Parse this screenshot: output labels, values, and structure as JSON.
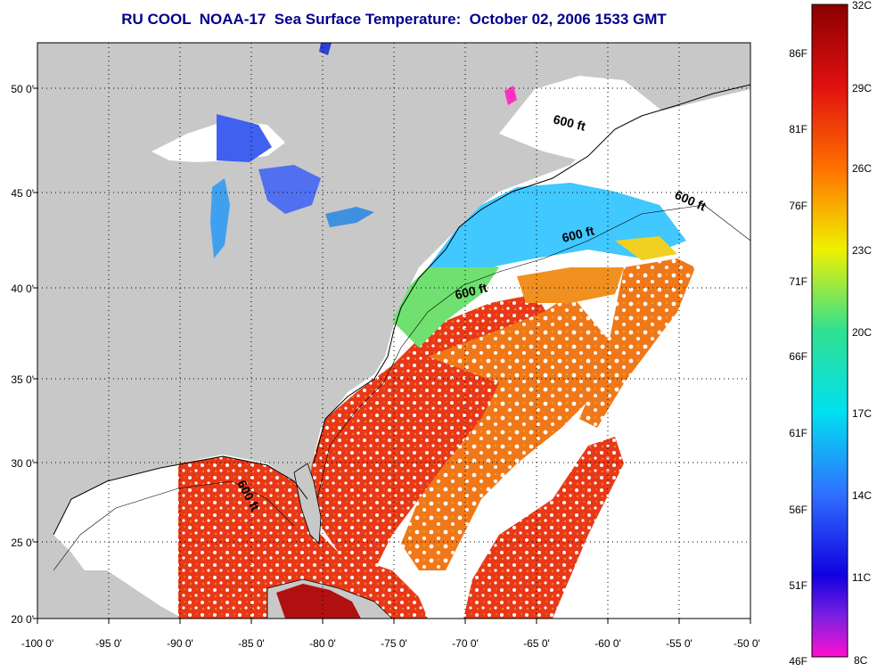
{
  "title": "RU COOL  NOAA-17  Sea Surface Temperature:  October 02, 2006 1533 GMT",
  "map": {
    "lat_labels": [
      "50 0'",
      "45 0'",
      "40 0'",
      "35 0'",
      "30 0'",
      "25 0'",
      "20 0'"
    ],
    "lon_labels": [
      "-100 0'",
      "-95 0'",
      "-90 0'",
      "-85 0'",
      "-80 0'",
      "-75 0'",
      "-70 0'",
      "-65 0'",
      "-60 0'",
      "-55 0'",
      "-50 0'"
    ],
    "lon_range": [
      -100,
      -50
    ],
    "lat_range": [
      20,
      52.5
    ],
    "isobath_label": "600 ft",
    "colors": {
      "land": "#c8c8c8",
      "ocean_nodata": "#ffffff",
      "gulf_stream": "#e83010",
      "shelf_cool": "#40c8ff"
    }
  },
  "colorbar": {
    "celsius": [
      "32C",
      "29C",
      "26C",
      "23C",
      "20C",
      "17C",
      "14C",
      "11C",
      "8C"
    ],
    "fahrenheit": [
      "86F",
      "81F",
      "76F",
      "71F",
      "66F",
      "61F",
      "56F",
      "51F",
      "46F"
    ],
    "range_c": [
      8,
      32
    ]
  }
}
